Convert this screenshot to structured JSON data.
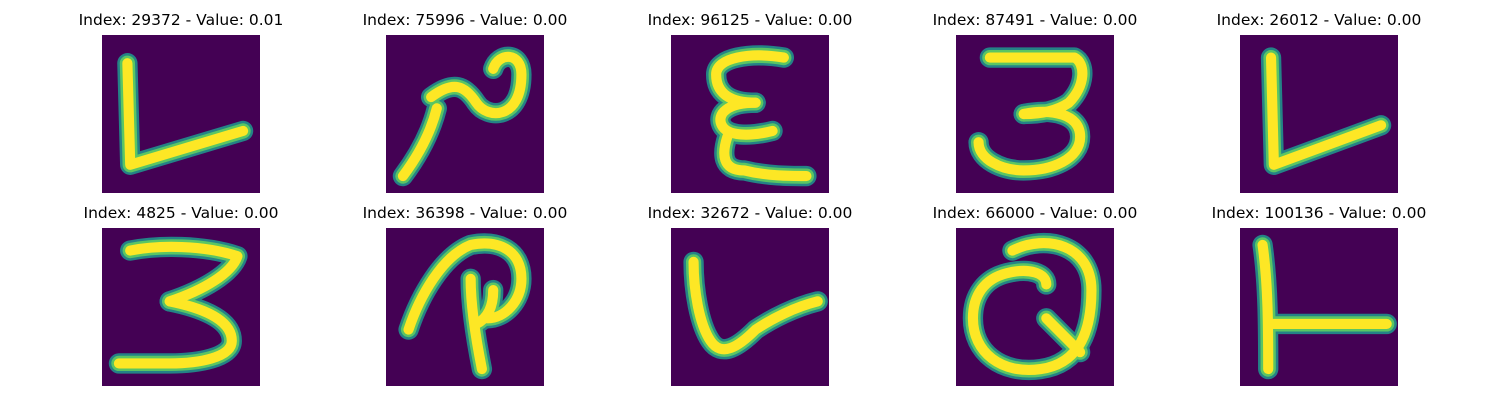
{
  "colors": {
    "background": "#440154",
    "stroke_edge": "#21918c",
    "stroke_mid": "#5ec962",
    "stroke_core": "#fde725"
  },
  "tiles": [
    {
      "title": "Index: 29372 - Value: 0.01",
      "glyph": "L-shape"
    },
    {
      "title": "Index: 75996 - Value: 0.00",
      "glyph": "2-shape"
    },
    {
      "title": "Index: 96125 - Value: 0.00",
      "glyph": "epsilon-shape"
    },
    {
      "title": "Index: 87491 - Value: 0.00",
      "glyph": "3-shape"
    },
    {
      "title": "Index: 26012 - Value: 0.00",
      "glyph": "L-shape"
    },
    {
      "title": "Index: 4825 - Value: 0.00",
      "glyph": "3-shape"
    },
    {
      "title": "Index: 36398 - Value: 0.00",
      "glyph": "P-shape"
    },
    {
      "title": "Index: 32672 - Value: 0.00",
      "glyph": "L-shape"
    },
    {
      "title": "Index: 66000 - Value: 0.00",
      "glyph": "Q-shape"
    },
    {
      "title": "Index: 100136 - Value: 0.00",
      "glyph": "T-shape"
    }
  ]
}
